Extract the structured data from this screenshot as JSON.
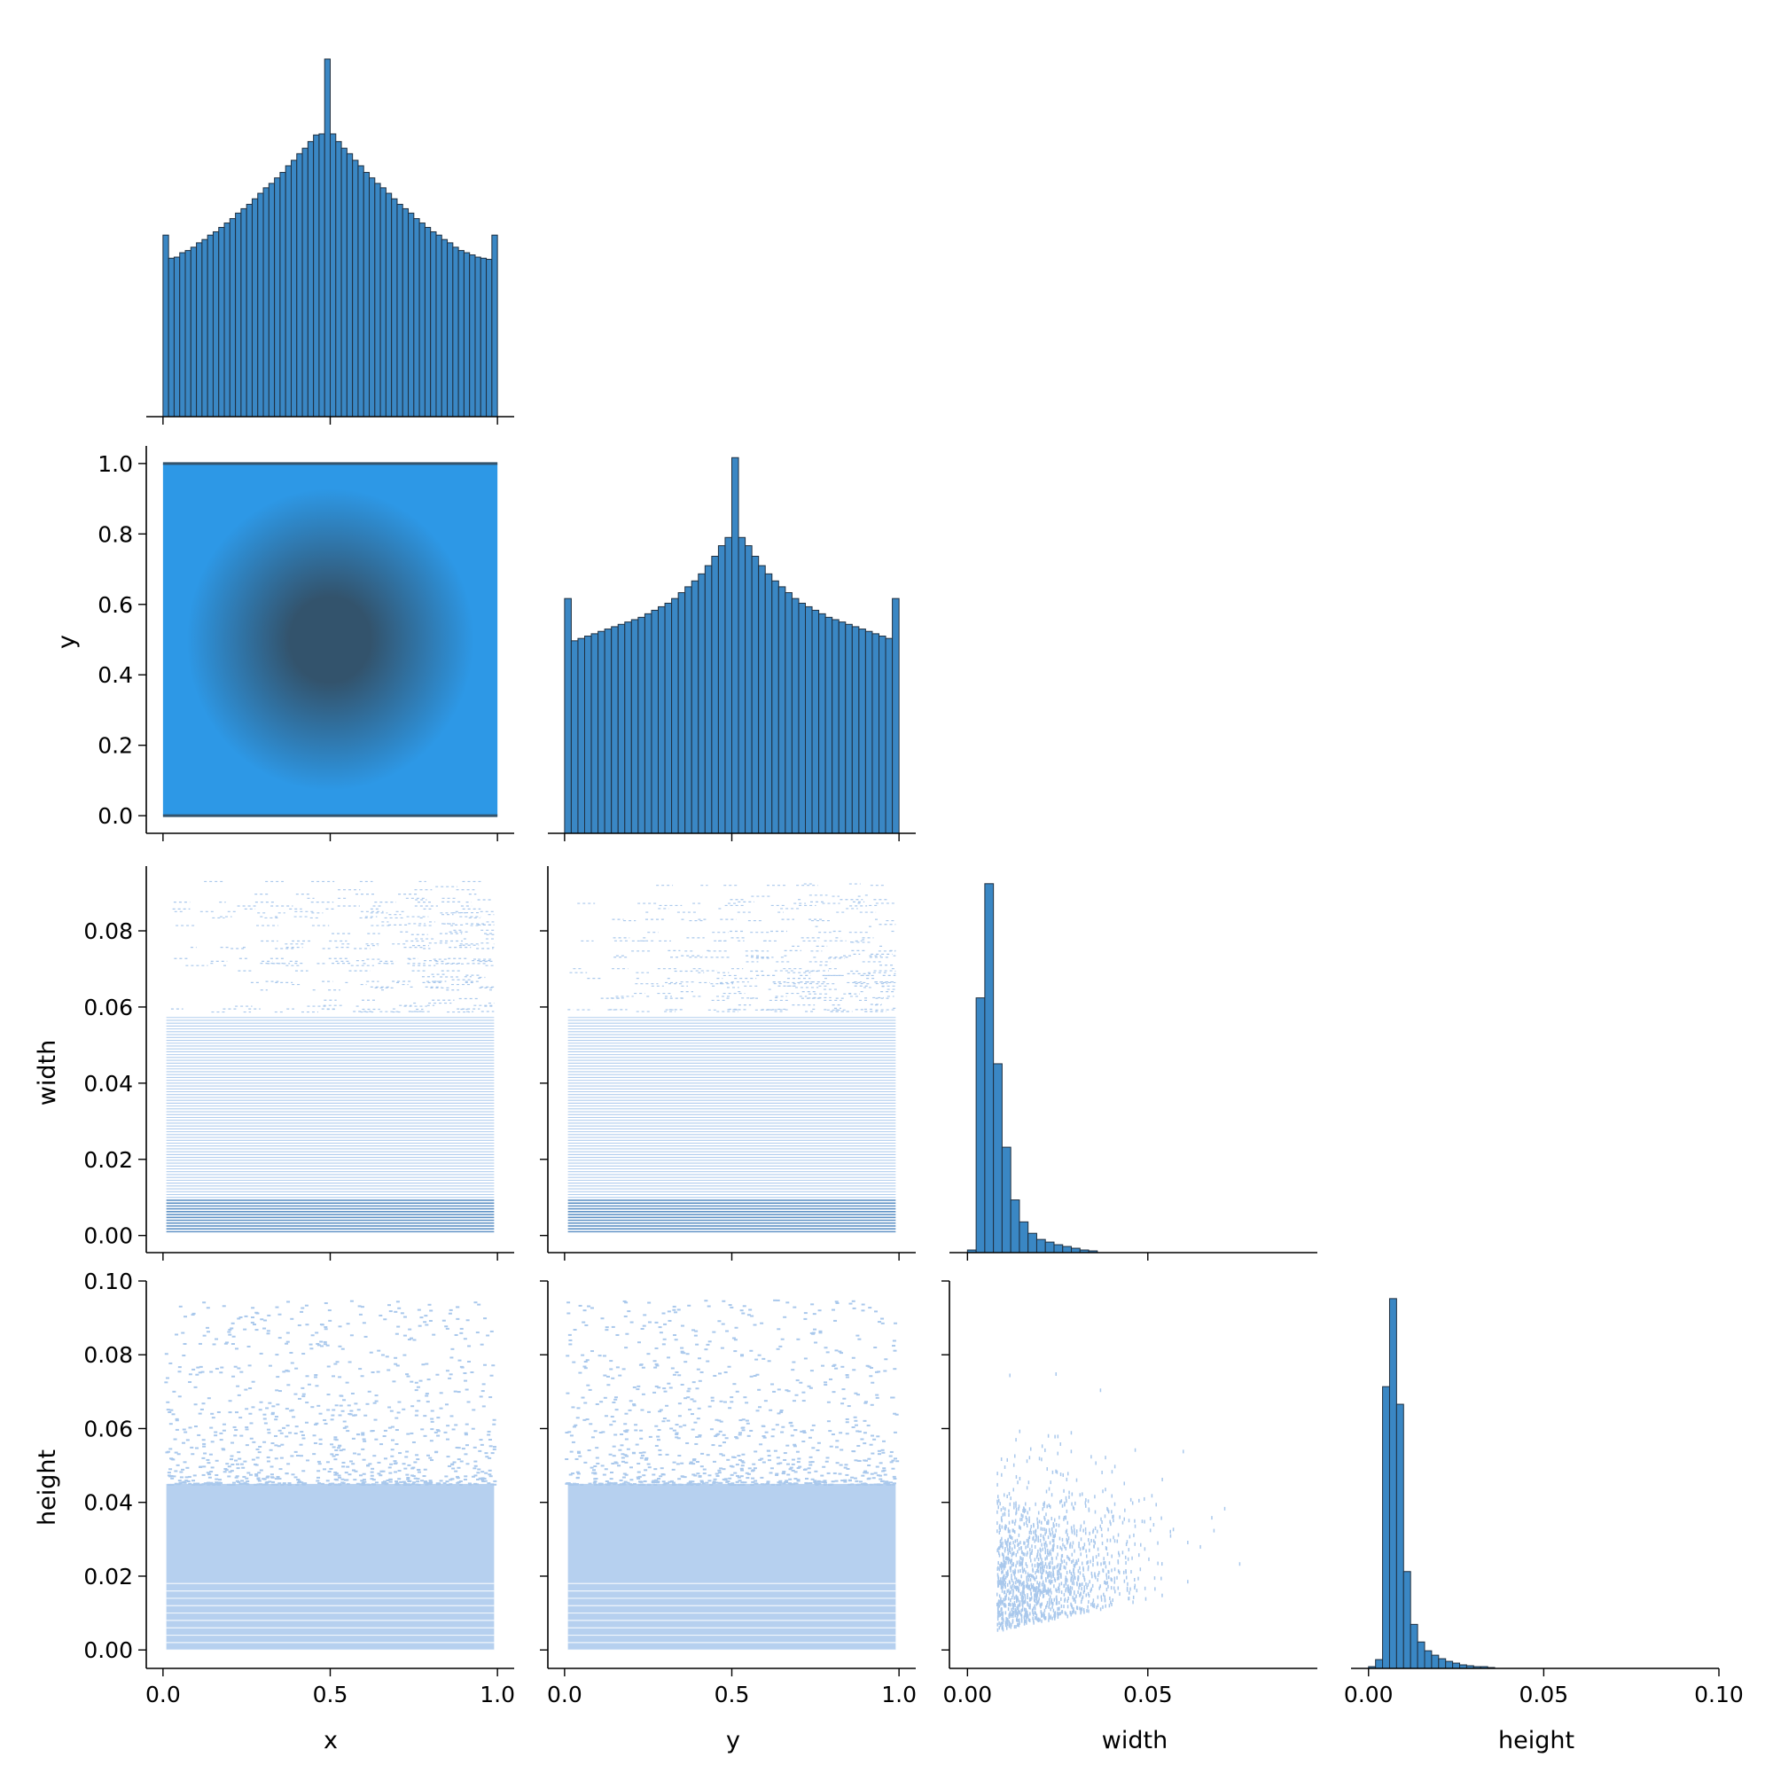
{
  "figure": {
    "type": "pairplot-corner",
    "variables": [
      "x",
      "y",
      "width",
      "height"
    ]
  },
  "colors": {
    "hist_fill": "#3a87c4",
    "hist_edge": "#1f2f3f",
    "density_dark": "#33536c",
    "density_light": "#2d98e6",
    "scatter_light": "#a9c8ec",
    "scatter_mid": "#3a78b8",
    "spine": "#000000"
  },
  "chart_data": [
    {
      "type": "bar",
      "panel": "x-hist",
      "xlim": [
        -0.05,
        1.05
      ],
      "bin_range": [
        0,
        1
      ],
      "bins": 60,
      "values": [
        165,
        144,
        145,
        149,
        151,
        154,
        158,
        161,
        165,
        168,
        172,
        176,
        180,
        185,
        189,
        193,
        198,
        203,
        208,
        212,
        217,
        222,
        228,
        233,
        239,
        244,
        250,
        256,
        257,
        325,
        257,
        250,
        244,
        239,
        233,
        228,
        222,
        217,
        212,
        208,
        203,
        198,
        193,
        189,
        185,
        180,
        176,
        172,
        168,
        165,
        161,
        158,
        154,
        151,
        149,
        147,
        145,
        144,
        143,
        165
      ],
      "ylim": [
        0,
        340
      ]
    },
    {
      "type": "heatmap",
      "panel": "y-vs-x",
      "x_label": "",
      "y_label": "y",
      "xlim": [
        -0.05,
        1.05
      ],
      "ylim": [
        -0.05,
        1.05
      ],
      "yticks": [
        "0.0",
        "0.2",
        "0.4",
        "0.6",
        "0.8",
        "1.0"
      ],
      "ytick_values": [
        0.0,
        0.2,
        0.4,
        0.6,
        0.8,
        1.0
      ],
      "density_center": [
        0.5,
        0.52
      ]
    },
    {
      "type": "bar",
      "panel": "y-hist",
      "xlim": [
        -0.05,
        1.05
      ],
      "bin_range": [
        0,
        1
      ],
      "bins": 50,
      "values": [
        200,
        164,
        166,
        168,
        170,
        172,
        174,
        176,
        178,
        180,
        182,
        184,
        187,
        190,
        193,
        196,
        200,
        205,
        210,
        215,
        221,
        228,
        236,
        245,
        252,
        320,
        252,
        245,
        236,
        228,
        221,
        215,
        210,
        205,
        200,
        196,
        193,
        190,
        187,
        184,
        182,
        180,
        178,
        176,
        174,
        172,
        170,
        168,
        166,
        200
      ],
      "ylim": [
        0,
        330
      ]
    },
    {
      "type": "scatter",
      "panel": "width-vs-x",
      "y_label": "width",
      "xlim": [
        -0.05,
        1.05
      ],
      "ylim": [
        -0.0045,
        0.097
      ],
      "yticks": [
        "0.00",
        "0.02",
        "0.04",
        "0.06",
        "0.08"
      ],
      "ytick_values": [
        0.0,
        0.02,
        0.04,
        0.06,
        0.08
      ],
      "x_range": [
        0,
        1
      ],
      "width_range": [
        0,
        0.093
      ]
    },
    {
      "type": "scatter",
      "panel": "width-vs-y",
      "xlim": [
        -0.05,
        1.05
      ],
      "ylim": [
        -0.0045,
        0.097
      ],
      "x_range": [
        0,
        1
      ],
      "width_range": [
        0,
        0.093
      ]
    },
    {
      "type": "bar",
      "panel": "width-hist",
      "xlim": [
        -0.005,
        0.097
      ],
      "bin_range": [
        0,
        0.036
      ],
      "bins": 15,
      "values": [
        3,
        290,
        420,
        215,
        120,
        60,
        35,
        22,
        15,
        12,
        9,
        7,
        5,
        3,
        2
      ],
      "ylim": [
        0,
        440
      ]
    },
    {
      "type": "scatter",
      "panel": "height-vs-x",
      "y_label": "height",
      "xlim": [
        -0.05,
        1.05
      ],
      "ylim": [
        -0.005,
        0.1
      ],
      "yticks": [
        "0.00",
        "0.02",
        "0.04",
        "0.06",
        "0.08",
        "0.10"
      ],
      "ytick_values": [
        0.0,
        0.02,
        0.04,
        0.06,
        0.08,
        0.1
      ],
      "x_label": "x",
      "xticks": [
        "0.0",
        "0.5",
        "1.0"
      ],
      "xtick_values": [
        0.0,
        0.5,
        1.0
      ]
    },
    {
      "type": "scatter",
      "panel": "height-vs-y",
      "xlim": [
        -0.05,
        1.05
      ],
      "ylim": [
        -0.005,
        0.1
      ],
      "x_label": "y",
      "xticks": [
        "0.0",
        "0.5",
        "1.0"
      ],
      "xtick_values": [
        0.0,
        0.5,
        1.0
      ]
    },
    {
      "type": "scatter",
      "panel": "height-vs-width",
      "xlim": [
        -0.005,
        0.097
      ],
      "ylim": [
        -0.005,
        0.1
      ],
      "x_label": "width",
      "xticks": [
        "0.00",
        "0.05"
      ],
      "xtick_values": [
        0.0,
        0.05
      ]
    },
    {
      "type": "bar",
      "panel": "height-hist",
      "xlim": [
        -0.005,
        0.1
      ],
      "bin_range": [
        0,
        0.036
      ],
      "bins": 18,
      "values": [
        2,
        10,
        320,
        420,
        300,
        110,
        50,
        30,
        20,
        15,
        11,
        8,
        6,
        4,
        3,
        2,
        2,
        1
      ],
      "ylim": [
        0,
        440
      ],
      "x_label": "height",
      "xticks": [
        "0.00",
        "0.05",
        "0.10"
      ],
      "xtick_values": [
        0.0,
        0.05,
        0.1
      ]
    }
  ]
}
